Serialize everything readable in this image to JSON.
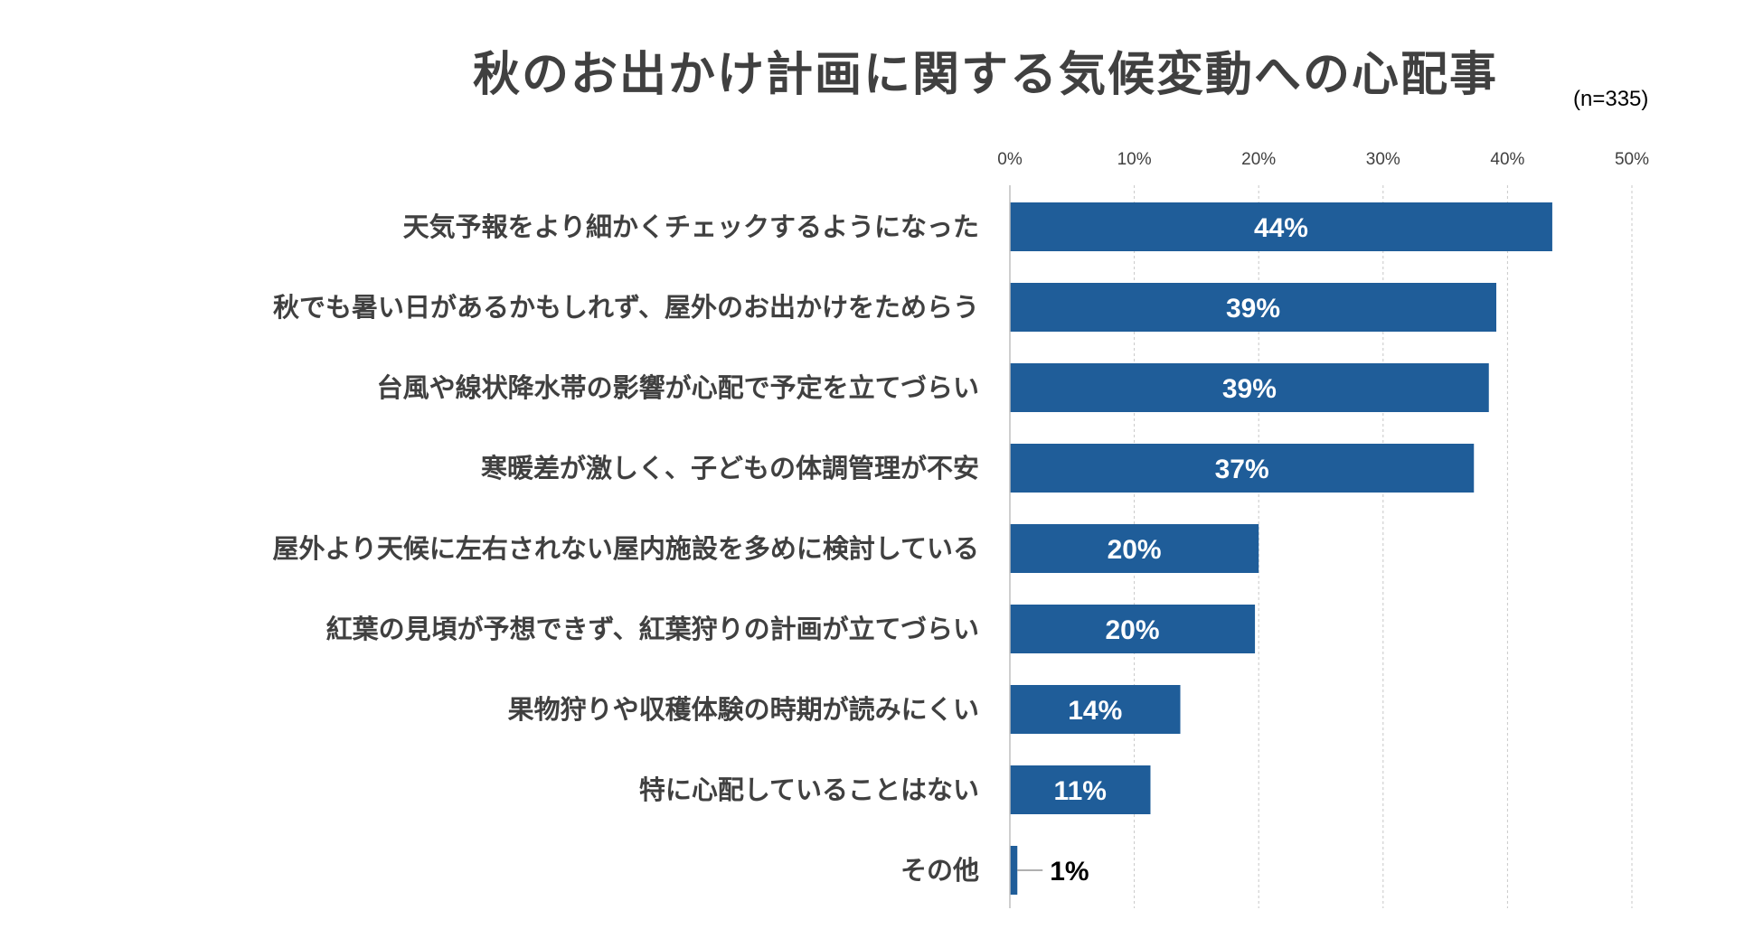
{
  "chart_data": {
    "type": "bar",
    "orientation": "horizontal",
    "title": "秋のお出かけ計画に関する気候変動への心配事",
    "note": "(n=335)",
    "categories": [
      "天気予報をより細かくチェックするようになった",
      "秋でも暑い日があるかもしれず、屋外のお出かけをためらう",
      "台風や線状降水帯の影響が心配で予定を立てづらい",
      "寒暖差が激しく、子どもの体調管理が不安",
      "屋外より天候に左右されない屋内施設を多めに検討している",
      "紅葉の見頃が予想できず、紅葉狩りの計画が立てづらい",
      "果物狩りや収穫体験の時期が読みにくい",
      "特に心配していることはない",
      "その他"
    ],
    "values": [
      43.6,
      39.1,
      38.5,
      37.3,
      20.0,
      19.7,
      13.7,
      11.3,
      0.6
    ],
    "data_labels": [
      "44%",
      "39%",
      "39%",
      "37%",
      "20%",
      "20%",
      "14%",
      "11%",
      "1%"
    ],
    "xlim": [
      0,
      50
    ],
    "ticks": [
      0,
      10,
      20,
      30,
      40,
      50
    ],
    "tick_labels": [
      "0%",
      "10%",
      "20%",
      "30%",
      "40%",
      "50%"
    ],
    "grid": true,
    "bar_color": "#1F5D99"
  }
}
